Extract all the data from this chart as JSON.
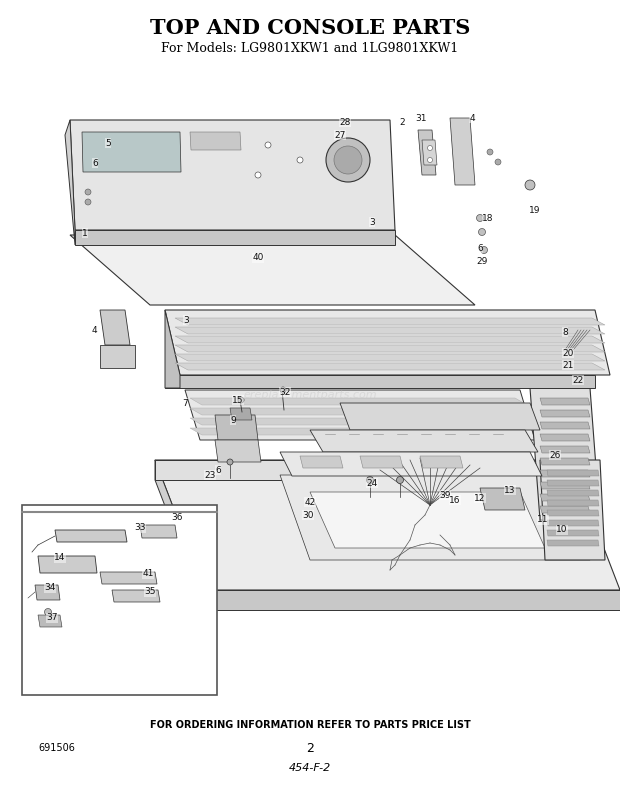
{
  "title": "TOP AND CONSOLE PARTS",
  "subtitle": "For Models: LG9801XKW1 and 1LG9801XKW1",
  "footer_text": "FOR ORDERING INFORMATION REFER TO PARTS PRICE LIST",
  "page_number": "2",
  "part_code": "454-F-2",
  "doc_number": "691506",
  "watermark": "ereplacementparts.com",
  "bg_color": "#ffffff",
  "title_fontsize": 15,
  "subtitle_fontsize": 9,
  "footer_fontsize": 7,
  "fig_width": 6.2,
  "fig_height": 7.87,
  "dpi": 100
}
